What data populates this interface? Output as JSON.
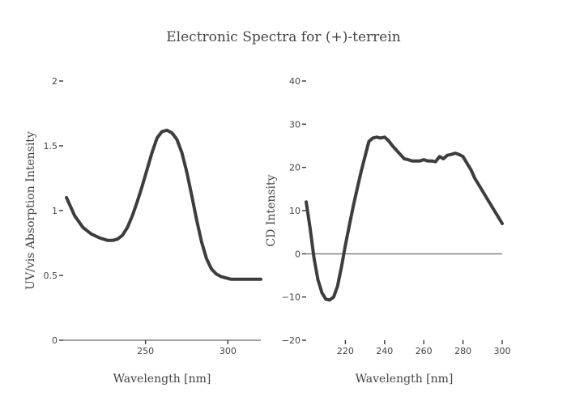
{
  "title": "Electronic Spectra for (+)-terrein",
  "chart_data": [
    {
      "type": "line",
      "xlabel": "Wavelength [nm]",
      "ylabel": "UV/vis Absorption Intensity",
      "xlim": [
        200,
        320
      ],
      "ylim": [
        0,
        2
      ],
      "xticks": [
        250,
        300
      ],
      "yticks": [
        0,
        0.5,
        1,
        1.5,
        2
      ],
      "grid": false,
      "x": [
        202,
        207,
        212,
        217,
        222,
        227,
        230,
        233,
        236,
        239,
        242,
        245,
        248,
        251,
        254,
        257,
        260,
        263,
        266,
        269,
        272,
        275,
        278,
        281,
        284,
        287,
        290,
        293,
        296,
        299,
        302,
        305,
        310,
        315,
        320
      ],
      "y": [
        1.1,
        0.96,
        0.87,
        0.82,
        0.79,
        0.77,
        0.77,
        0.78,
        0.81,
        0.87,
        0.96,
        1.07,
        1.19,
        1.32,
        1.45,
        1.56,
        1.61,
        1.62,
        1.6,
        1.55,
        1.45,
        1.3,
        1.12,
        0.93,
        0.76,
        0.63,
        0.55,
        0.51,
        0.49,
        0.48,
        0.47,
        0.47,
        0.47,
        0.47,
        0.47
      ]
    },
    {
      "type": "line",
      "xlabel": "Wavelength [nm]",
      "ylabel": "CD Intensity",
      "xlim": [
        200,
        300
      ],
      "ylim": [
        -20,
        40
      ],
      "xticks": [
        220,
        240,
        260,
        280,
        300
      ],
      "yticks": [
        -20,
        -10,
        0,
        10,
        20,
        30,
        40
      ],
      "zeroline": true,
      "grid": false,
      "x": [
        200,
        202,
        204,
        206,
        208,
        210,
        212,
        214,
        216,
        218,
        220,
        222,
        224,
        226,
        228,
        230,
        232,
        234,
        236,
        238,
        240,
        242,
        244,
        246,
        248,
        250,
        252,
        254,
        256,
        258,
        260,
        262,
        264,
        266,
        268,
        270,
        272,
        274,
        276,
        278,
        280,
        282,
        284,
        286,
        288,
        290,
        292,
        294,
        296,
        298,
        300
      ],
      "y": [
        12,
        6,
        -1,
        -6,
        -9,
        -10.5,
        -10.7,
        -10,
        -7.5,
        -3,
        2,
        6.5,
        11,
        15,
        19,
        22.5,
        26,
        26.8,
        27,
        26.8,
        27,
        26.2,
        25,
        24,
        23,
        22,
        21.8,
        21.5,
        21.5,
        21.5,
        21.8,
        21.5,
        21.5,
        21.3,
        22.5,
        22,
        22.8,
        23,
        23.3,
        23,
        22.5,
        21,
        19.5,
        17.5,
        16,
        14.5,
        13,
        11.5,
        10,
        8.5,
        7
      ]
    }
  ]
}
